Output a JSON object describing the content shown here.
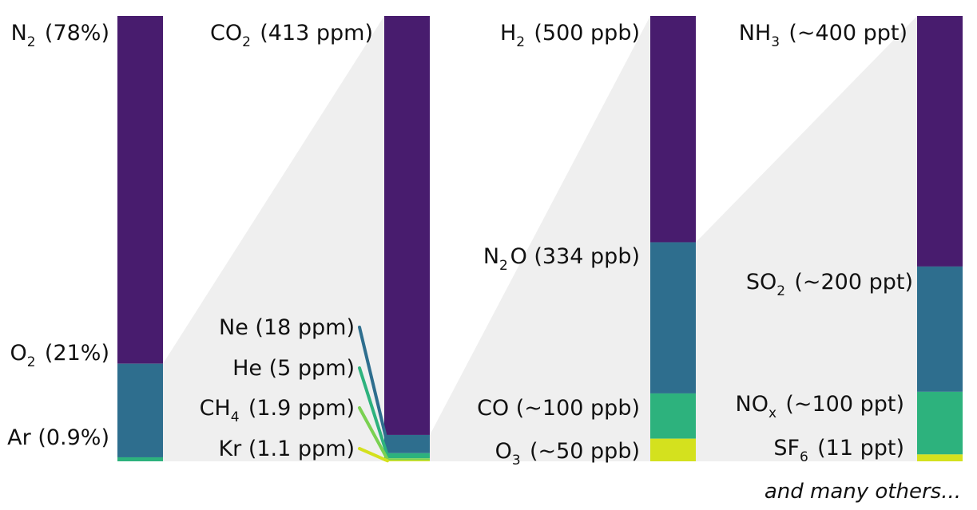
{
  "chart_data": {
    "type": "bar",
    "stacked": true,
    "title": "",
    "xlabel": "",
    "ylabel": "",
    "colors": [
      "#481C6E",
      "#2E6E8E",
      "#2DB27D",
      "#D4E11E"
    ],
    "note": "and many others...",
    "columns": [
      {
        "segments": [
          {
            "label": [
              [
                "N",
                "2"
              ],
              [
                " (78%)",
                ""
              ]
            ],
            "value": 78,
            "color": "#481C6E"
          },
          {
            "label": [
              [
                "O",
                "2"
              ],
              [
                " (21%)",
                ""
              ]
            ],
            "value": 21,
            "color": "#2E6E8E"
          },
          {
            "label": [
              [
                "Ar (0.9%)",
                ""
              ]
            ],
            "value": 0.9,
            "color": "#2DB27D"
          }
        ]
      },
      {
        "segments": [
          {
            "label": [
              [
                "CO",
                "2"
              ],
              [
                " (413 ppm)",
                ""
              ]
            ],
            "value": 413,
            "color": "#481C6E"
          },
          {
            "label": [
              [
                "Ne (18 ppm)",
                ""
              ]
            ],
            "value": 18,
            "color": "#2E6E8E"
          },
          {
            "label": [
              [
                "He (5 ppm)",
                ""
              ]
            ],
            "value": 5,
            "color": "#2DB27D"
          },
          {
            "label": [
              [
                "CH",
                "4"
              ],
              [
                " (1.9 ppm)",
                ""
              ]
            ],
            "value": 1.9,
            "color": "#7AD151"
          },
          {
            "label": [
              [
                "Kr (1.1 ppm)",
                ""
              ]
            ],
            "value": 1.1,
            "color": "#D4E11E"
          }
        ]
      },
      {
        "segments": [
          {
            "label": [
              [
                "H",
                "2"
              ],
              [
                " (500 ppb)",
                ""
              ]
            ],
            "value": 500,
            "color": "#481C6E"
          },
          {
            "label": [
              [
                "N",
                "2"
              ],
              [
                "O (334 ppb)",
                ""
              ]
            ],
            "value": 334,
            "color": "#2E6E8E"
          },
          {
            "label": [
              [
                "CO (~100 ppb)",
                ""
              ]
            ],
            "value": 100,
            "color": "#2DB27D"
          },
          {
            "label": [
              [
                "O",
                "3"
              ],
              [
                " (~50 ppb)",
                ""
              ]
            ],
            "value": 50,
            "color": "#D4E11E"
          }
        ]
      },
      {
        "segments": [
          {
            "label": [
              [
                "NH",
                "3"
              ],
              [
                " (~400 ppt)",
                ""
              ]
            ],
            "value": 400,
            "color": "#481C6E"
          },
          {
            "label": [
              [
                "SO",
                "2"
              ],
              [
                " (~200 ppt)",
                ""
              ]
            ],
            "value": 200,
            "color": "#2E6E8E"
          },
          {
            "label": [
              [
                "NO",
                "x"
              ],
              [
                " (~100 ppt)",
                ""
              ]
            ],
            "value": 100,
            "color": "#2DB27D"
          },
          {
            "label": [
              [
                "SF",
                "6"
              ],
              [
                " (11 ppt)",
                ""
              ]
            ],
            "value": 11,
            "color": "#D4E11E"
          }
        ]
      }
    ]
  }
}
